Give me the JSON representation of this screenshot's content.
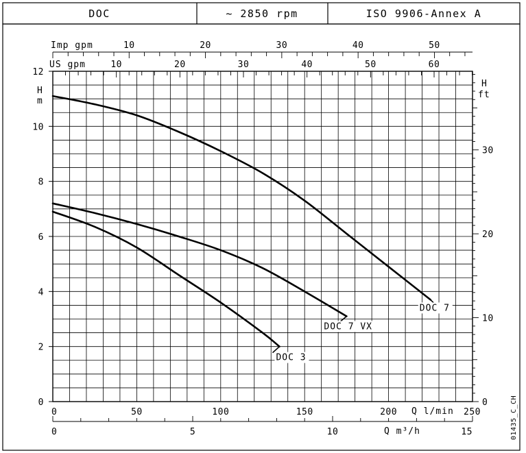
{
  "header": {
    "model": "DOC",
    "speed": "~ 2850 rpm",
    "standard": "ISO 9906-Annex A"
  },
  "chart_data": {
    "type": "line",
    "x_unit_label": "Q l/min",
    "xlim": [
      0,
      250
    ],
    "x_ticks": [
      0,
      50,
      100,
      150,
      200,
      250
    ],
    "m3h_label": "Q m³/h",
    "m3h_ticks": [
      0,
      5,
      10,
      15
    ],
    "y_label_top": "H",
    "y_label_bottom": "m",
    "ylim": [
      0,
      12
    ],
    "y_ticks": [
      0,
      2,
      4,
      6,
      8,
      10,
      12
    ],
    "ft_label_top": "H",
    "ft_label_bottom": "ft",
    "ft_ticks": [
      0,
      10,
      20,
      30
    ],
    "imp_gpm_label": "Imp gpm",
    "imp_gpm_ticks": [
      10,
      20,
      30,
      40,
      50
    ],
    "us_gpm_label": "US gpm",
    "us_gpm_ticks": [
      10,
      20,
      30,
      40,
      50,
      60
    ],
    "grid": true,
    "series": [
      {
        "name": "DOC 7",
        "x": [
          0,
          25,
          50,
          75,
          100,
          125,
          150,
          175,
          200,
          225
        ],
        "y": [
          11.1,
          10.8,
          10.4,
          9.8,
          9.1,
          8.3,
          7.3,
          6.1,
          4.9,
          3.7
        ]
      },
      {
        "name": "DOC 7 VX",
        "x": [
          0,
          25,
          50,
          75,
          100,
          125,
          150,
          175
        ],
        "y": [
          7.2,
          6.85,
          6.45,
          6.0,
          5.5,
          4.85,
          4.0,
          3.1
        ]
      },
      {
        "name": "DOC 3",
        "x": [
          0,
          25,
          50,
          75,
          100,
          125,
          135
        ],
        "y": [
          6.9,
          6.35,
          5.6,
          4.6,
          3.6,
          2.5,
          2.0
        ]
      }
    ],
    "curve_labels": [
      "DOC 7",
      "DOC 7 VX",
      "DOC 3"
    ]
  },
  "drawing_code": "01435_C_CH"
}
